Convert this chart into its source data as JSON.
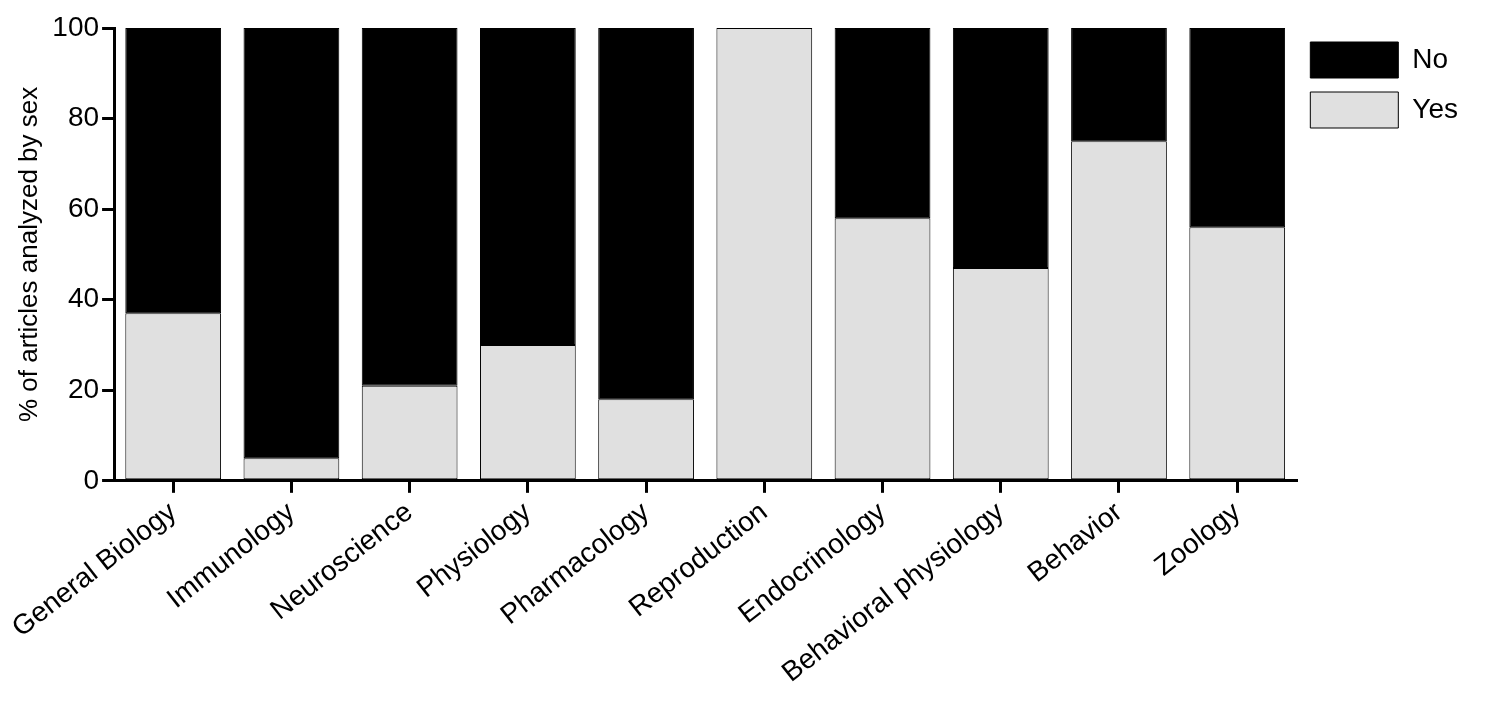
{
  "chart_data": {
    "type": "bar",
    "ylabel": "% of articles analyzed by sex",
    "categories": [
      "General Biology",
      "Immunology",
      "Neuroscience",
      "Physiology",
      "Pharmacology",
      "Reproduction",
      "Endocrinology",
      "Behavioral physiology",
      "Behavior",
      "Zoology"
    ],
    "series": [
      {
        "name": "Yes",
        "color": "#e0e0e0",
        "values": [
          37,
          5,
          21,
          30,
          18,
          100,
          58,
          47,
          75,
          56
        ]
      },
      {
        "name": "No",
        "color": "#000000",
        "values": [
          63,
          95,
          79,
          70,
          82,
          0,
          42,
          53,
          25,
          44
        ]
      }
    ],
    "stacked": true,
    "ylim": [
      0,
      100
    ],
    "yticks": [
      0,
      20,
      40,
      60,
      80,
      100
    ],
    "grid": false,
    "legend": "top right"
  }
}
